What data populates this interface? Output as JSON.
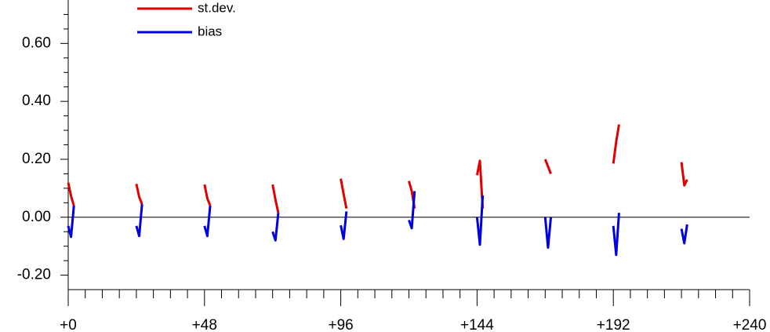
{
  "chart_data": {
    "type": "line",
    "x": [
      0,
      1,
      2,
      null,
      24,
      25,
      26,
      null,
      48,
      49,
      50,
      null,
      72,
      73,
      74,
      null,
      96,
      97,
      98,
      null,
      120,
      121,
      122,
      null,
      144,
      145,
      146,
      null,
      168,
      169,
      170,
      null,
      192,
      193,
      194,
      null,
      216,
      217,
      218
    ],
    "series": [
      {
        "name": "st.dev.",
        "color": "#e00000",
        "values": [
          0.119,
          0.073,
          0.04,
          null,
          0.115,
          0.07,
          0.045,
          null,
          0.113,
          0.065,
          0.04,
          null,
          0.113,
          0.06,
          0.015,
          null,
          0.133,
          0.08,
          0.03,
          null,
          0.125,
          0.09,
          0.03,
          null,
          0.145,
          0.195,
          0.03,
          null,
          0.2,
          0.175,
          0.15,
          null,
          0.185,
          0.26,
          0.32,
          null,
          0.19,
          0.11,
          0.13
        ]
      },
      {
        "name": "bias",
        "color": "#0000e0",
        "values": [
          -0.03,
          -0.068,
          0.04,
          null,
          -0.03,
          -0.065,
          0.045,
          null,
          -0.03,
          -0.065,
          0.04,
          null,
          -0.05,
          -0.08,
          0.015,
          null,
          -0.028,
          -0.075,
          0.02,
          null,
          -0.01,
          -0.038,
          0.09,
          null,
          0.0,
          -0.095,
          0.075,
          null,
          0.0,
          -0.105,
          0.0,
          null,
          -0.03,
          -0.13,
          0.015,
          null,
          -0.04,
          -0.09,
          -0.025
        ]
      }
    ],
    "xlim": [
      0,
      240
    ],
    "xticks": [
      {
        "value": 0,
        "label": "+0"
      },
      {
        "value": 48,
        "label": "+48"
      },
      {
        "value": 96,
        "label": "+96"
      },
      {
        "value": 144,
        "label": "+144"
      },
      {
        "value": 192,
        "label": "+192"
      },
      {
        "value": 240,
        "label": "+240"
      }
    ],
    "xminor_ticks": [
      6,
      12,
      18,
      24,
      30,
      36,
      42,
      54,
      60,
      66,
      72,
      78,
      84,
      90,
      102,
      108,
      114,
      120,
      126,
      132,
      138,
      150,
      156,
      162,
      168,
      174,
      180,
      186,
      198,
      204,
      210,
      216,
      222,
      228,
      234
    ],
    "ylim": [
      -0.25,
      0.75
    ],
    "yticks": [
      {
        "value": -0.2,
        "label": "-0.20"
      },
      {
        "value": 0,
        "label": "0.00"
      },
      {
        "value": 0.2,
        "label": "0.20"
      },
      {
        "value": 0.4,
        "label": "0.40"
      },
      {
        "value": 0.6,
        "label": "0.60"
      }
    ],
    "yminor_ticks": [
      -0.15,
      -0.1,
      -0.05,
      0.05,
      0.1,
      0.15,
      0.25,
      0.3,
      0.35,
      0.45,
      0.5,
      0.55,
      0.65,
      0.7
    ],
    "zero_line": true
  }
}
